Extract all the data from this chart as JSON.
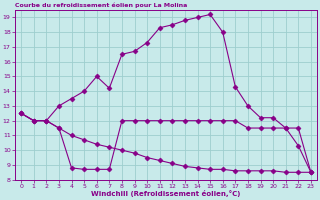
{
  "title": "Courbe du refroidissement éolien pour La Molina",
  "xlabel": "Windchill (Refroidissement éolien,°C)",
  "xlim": [
    -0.5,
    23.5
  ],
  "ylim": [
    8,
    19.5
  ],
  "yticks": [
    8,
    9,
    10,
    11,
    12,
    13,
    14,
    15,
    16,
    17,
    18,
    19
  ],
  "xticks": [
    0,
    1,
    2,
    3,
    4,
    5,
    6,
    7,
    8,
    9,
    10,
    11,
    12,
    13,
    14,
    15,
    16,
    17,
    18,
    19,
    20,
    21,
    22,
    23
  ],
  "background_color": "#c8eaea",
  "grid_color": "#9ecece",
  "line_color": "#880088",
  "line1_x": [
    0,
    1,
    2,
    3,
    4,
    5,
    6,
    7,
    8,
    9,
    10,
    11,
    12,
    13,
    14,
    15,
    16,
    17,
    18,
    19,
    20,
    21,
    22,
    23
  ],
  "line1_y": [
    12.5,
    12.0,
    12.0,
    11.5,
    8.8,
    8.7,
    8.7,
    8.7,
    12.0,
    12.0,
    12.0,
    12.0,
    12.0,
    12.0,
    12.0,
    12.0,
    12.0,
    12.0,
    11.5,
    11.5,
    11.5,
    11.5,
    11.5,
    8.5
  ],
  "line2_x": [
    0,
    1,
    2,
    3,
    4,
    5,
    6,
    7,
    8,
    9,
    10,
    11,
    12,
    13,
    14,
    15,
    16,
    17,
    18,
    19,
    20,
    21,
    22,
    23
  ],
  "line2_y": [
    12.5,
    12.0,
    12.0,
    11.5,
    11.0,
    10.7,
    10.4,
    10.2,
    10.0,
    9.8,
    9.5,
    9.3,
    9.1,
    8.9,
    8.8,
    8.7,
    8.7,
    8.6,
    8.6,
    8.6,
    8.6,
    8.5,
    8.5,
    8.5
  ],
  "line3_x": [
    0,
    1,
    2,
    3,
    4,
    5,
    6,
    7,
    8,
    9,
    10,
    11,
    12,
    13,
    14,
    15,
    16,
    17,
    18,
    19,
    20,
    21,
    22,
    23
  ],
  "line3_y": [
    12.5,
    12.0,
    12.0,
    13.0,
    13.5,
    14.0,
    15.0,
    14.2,
    16.5,
    16.7,
    17.3,
    18.3,
    18.5,
    18.8,
    19.0,
    19.2,
    18.0,
    14.3,
    13.0,
    12.2,
    12.2,
    11.5,
    10.3,
    8.5
  ]
}
